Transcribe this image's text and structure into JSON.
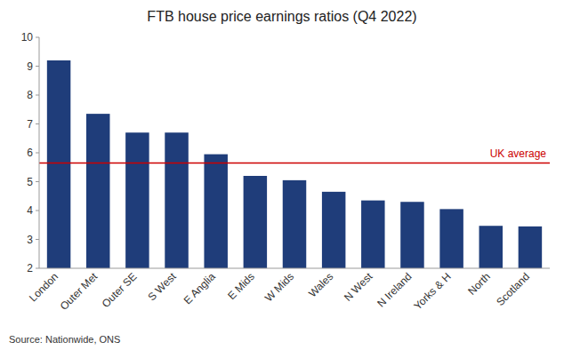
{
  "chart_data": {
    "type": "bar",
    "title": "FTB house price earnings ratios (Q4 2022)",
    "categories": [
      "London",
      "Outer Met",
      "Outer SE",
      "S West",
      "E Anglia",
      "E Mids",
      "W Mids",
      "Wales",
      "N West",
      "N Ireland",
      "Yorks & H",
      "North",
      "Scotland"
    ],
    "values": [
      9.2,
      7.35,
      6.7,
      6.7,
      5.95,
      5.2,
      5.05,
      4.65,
      4.35,
      4.3,
      4.05,
      3.47,
      3.45
    ],
    "color": "#1F3D7A",
    "ylim": [
      2,
      10
    ],
    "yticks": [
      2,
      3,
      4,
      5,
      6,
      7,
      8,
      9,
      10
    ],
    "grid": false,
    "annotations": [
      {
        "text": "UK average",
        "y": 5.65,
        "color": "#CC0000"
      }
    ],
    "source": "Source: Nationwide, ONS"
  }
}
